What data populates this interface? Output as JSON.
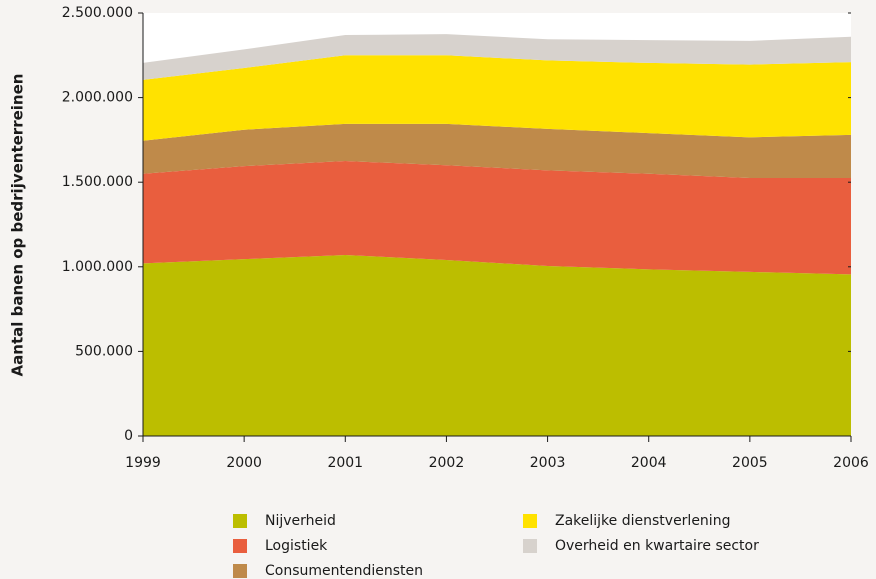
{
  "chart_data": {
    "type": "stacked_area",
    "ylabel": "Aantal banen op bedrijventerreinen",
    "x": [
      1999,
      2000,
      2001,
      2002,
      2003,
      2004,
      2005,
      2006
    ],
    "xlim": [
      1999,
      2006
    ],
    "xticks": [
      1999,
      2000,
      2001,
      2002,
      2003,
      2004,
      2005,
      2006
    ],
    "ylim": [
      0,
      2500000
    ],
    "yticks": [
      0,
      {
        "value": 500000,
        "label": "500.000"
      },
      {
        "value": 1000000,
        "label": "1.000.000"
      },
      {
        "value": 1500000,
        "label": "1.500.000"
      },
      {
        "value": 2000000,
        "label": "2.000.000"
      },
      {
        "value": 2500000,
        "label": "2.500.000"
      }
    ],
    "series": [
      {
        "name": "Nijverheid",
        "color": "#bcbe00",
        "values": [
          1020000,
          1045000,
          1070000,
          1040000,
          1005000,
          985000,
          970000,
          955000
        ]
      },
      {
        "name": "Logistiek",
        "color": "#e95e3e",
        "values": [
          530000,
          550000,
          555000,
          560000,
          565000,
          565000,
          555000,
          570000
        ]
      },
      {
        "name": "Consumentendiensten",
        "color": "#bf8a4a",
        "values": [
          195000,
          215000,
          220000,
          245000,
          245000,
          240000,
          240000,
          255000
        ]
      },
      {
        "name": "Zakelijke dienstverlening",
        "color": "#ffe200",
        "values": [
          360000,
          365000,
          405000,
          405000,
          405000,
          415000,
          430000,
          430000
        ]
      },
      {
        "name": "Overheid en kwartaire sector",
        "color": "#d7d2cd",
        "values": [
          100000,
          110000,
          120000,
          125000,
          125000,
          135000,
          140000,
          150000
        ]
      }
    ]
  }
}
